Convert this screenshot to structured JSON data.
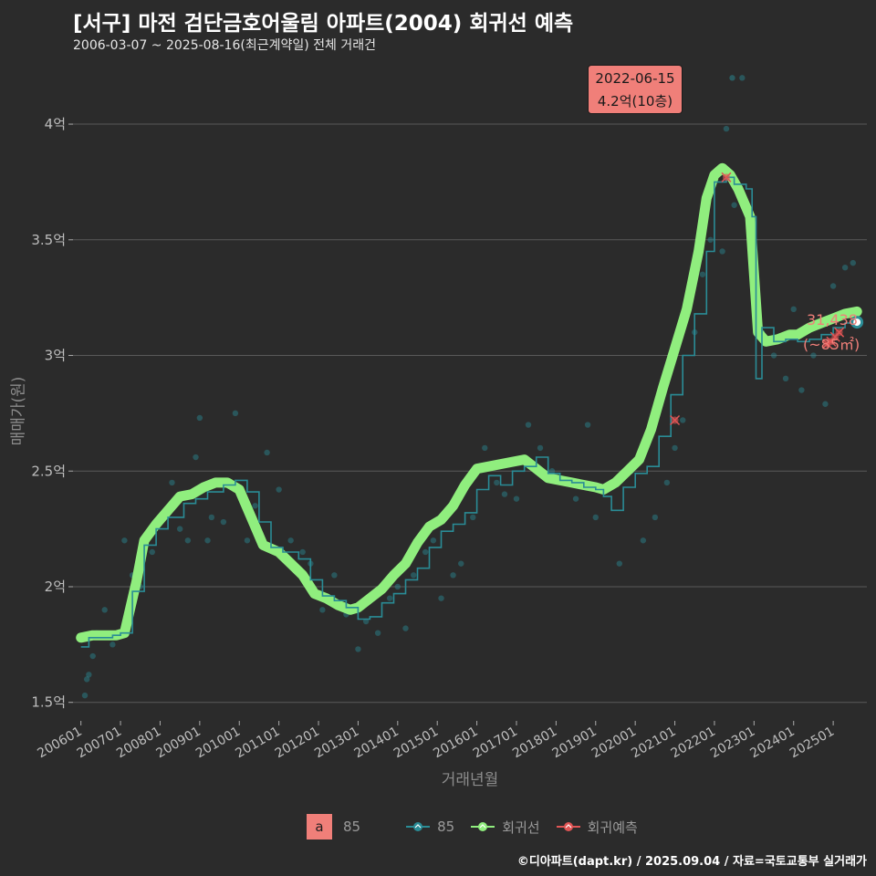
{
  "header": {
    "title": "[서구] 마전 검단금호어울림 아파트(2004) 회귀선 예측",
    "subtitle": "2006-03-07 ~ 2025-08-16(최근계약일) 전체 거래건"
  },
  "callout": {
    "date": "2022-06-15",
    "price": "4.2억(10층)"
  },
  "last_point": {
    "value": "31,438",
    "area": "(~85㎡)"
  },
  "legend": {
    "fill_key": "a",
    "fill_label": "85",
    "series1": "85",
    "series2": "회귀선",
    "series3": "회귀예측"
  },
  "footer": "©디아파트(dapt.kr) / 2025.09.04 / 자료=국토교통부 실거래가",
  "colors": {
    "background": "#2b2b2b",
    "regression": "#90ee7e",
    "actual": "#2a8c96",
    "predict": "#e05555",
    "accent": "#f07f79"
  },
  "chart_data": {
    "type": "line",
    "title": "[서구] 마전 검단금호어울림 아파트(2004) 회귀선 예측",
    "xlabel": "거래년월",
    "ylabel": "매매가(원)",
    "x_range": [
      2005.8,
      2025.85
    ],
    "ylim": [
      1.42,
      4.3
    ],
    "y_ticks": [
      1.5,
      2,
      2.5,
      3,
      3.5,
      4
    ],
    "y_tick_labels": [
      "1.5억",
      "2억",
      "2.5억",
      "3억",
      "3.5억",
      "4억"
    ],
    "x_ticks": [
      2006,
      2007,
      2008,
      2009,
      2010,
      2011,
      2012,
      2013,
      2014,
      2015,
      2016,
      2017,
      2018,
      2019,
      2020,
      2021,
      2022,
      2023,
      2024,
      2025
    ],
    "x_tick_labels": [
      "200601",
      "200701",
      "200801",
      "200901",
      "201001",
      "201101",
      "201201",
      "201301",
      "201401",
      "201501",
      "201601",
      "201701",
      "201801",
      "201901",
      "202001",
      "202101",
      "202201",
      "202301",
      "202401",
      "202501"
    ],
    "series": [
      {
        "name": "회귀선",
        "x": [
          2006.0,
          2006.3,
          2006.6,
          2006.9,
          2007.1,
          2007.4,
          2007.6,
          2007.9,
          2008.2,
          2008.5,
          2008.8,
          2009.1,
          2009.4,
          2009.7,
          2010.0,
          2010.3,
          2010.6,
          2011.0,
          2011.3,
          2011.6,
          2011.9,
          2012.2,
          2012.5,
          2012.8,
          2013.0,
          2013.3,
          2013.6,
          2013.9,
          2014.2,
          2014.5,
          2014.8,
          2015.1,
          2015.4,
          2015.7,
          2016.0,
          2016.3,
          2016.6,
          2016.9,
          2017.2,
          2017.5,
          2017.8,
          2018.1,
          2018.4,
          2018.7,
          2019.0,
          2019.2,
          2019.5,
          2019.8,
          2020.1,
          2020.4,
          2020.7,
          2021.0,
          2021.3,
          2021.6,
          2021.8,
          2022.0,
          2022.2,
          2022.4,
          2022.6,
          2022.9,
          2023.1,
          2023.3,
          2023.6,
          2023.9,
          2024.1,
          2024.4,
          2024.7,
          2025.0,
          2025.3,
          2025.6
        ],
        "values": [
          1.78,
          1.79,
          1.79,
          1.79,
          1.8,
          2.02,
          2.2,
          2.27,
          2.33,
          2.39,
          2.4,
          2.43,
          2.45,
          2.45,
          2.42,
          2.3,
          2.18,
          2.15,
          2.1,
          2.05,
          1.97,
          1.95,
          1.92,
          1.9,
          1.91,
          1.95,
          1.99,
          2.05,
          2.1,
          2.19,
          2.26,
          2.29,
          2.35,
          2.44,
          2.51,
          2.52,
          2.53,
          2.54,
          2.55,
          2.51,
          2.47,
          2.46,
          2.45,
          2.44,
          2.43,
          2.42,
          2.45,
          2.5,
          2.55,
          2.68,
          2.86,
          3.03,
          3.2,
          3.45,
          3.68,
          3.78,
          3.81,
          3.78,
          3.72,
          3.6,
          3.1,
          3.06,
          3.07,
          3.09,
          3.09,
          3.12,
          3.14,
          3.16,
          3.18,
          3.19
        ]
      },
      {
        "name": "85",
        "x": [
          2006.0,
          2006.2,
          2006.5,
          2006.8,
          2007.0,
          2007.3,
          2007.6,
          2007.9,
          2008.2,
          2008.6,
          2008.9,
          2009.2,
          2009.6,
          2009.9,
          2010.2,
          2010.5,
          2010.8,
          2011.1,
          2011.5,
          2011.8,
          2012.1,
          2012.4,
          2012.7,
          2013.0,
          2013.3,
          2013.6,
          2013.9,
          2014.2,
          2014.5,
          2014.8,
          2015.1,
          2015.4,
          2015.7,
          2016.0,
          2016.3,
          2016.6,
          2016.9,
          2017.2,
          2017.5,
          2017.8,
          2018.1,
          2018.4,
          2018.7,
          2019.0,
          2019.2,
          2019.4,
          2019.7,
          2020.0,
          2020.3,
          2020.6,
          2020.9,
          2021.2,
          2021.5,
          2021.8,
          2022.0,
          2022.3,
          2022.5,
          2022.8,
          2022.95,
          2023.05,
          2023.2,
          2023.5,
          2023.8,
          2024.1,
          2024.4,
          2024.7,
          2025.0,
          2025.3,
          2025.6
        ],
        "values": [
          1.74,
          1.78,
          1.78,
          1.79,
          1.8,
          1.98,
          2.18,
          2.25,
          2.3,
          2.36,
          2.38,
          2.41,
          2.44,
          2.46,
          2.41,
          2.28,
          2.17,
          2.15,
          2.12,
          2.03,
          1.96,
          1.94,
          1.91,
          1.86,
          1.87,
          1.93,
          1.97,
          2.03,
          2.08,
          2.17,
          2.24,
          2.27,
          2.32,
          2.42,
          2.48,
          2.44,
          2.5,
          2.52,
          2.56,
          2.49,
          2.46,
          2.45,
          2.43,
          2.42,
          2.39,
          2.33,
          2.43,
          2.49,
          2.52,
          2.65,
          2.83,
          3.0,
          3.18,
          3.45,
          3.75,
          3.77,
          3.74,
          3.72,
          3.6,
          2.9,
          3.12,
          3.06,
          3.07,
          3.06,
          3.07,
          3.09,
          3.12,
          3.14,
          3.15
        ]
      },
      {
        "name": "회귀예측",
        "x": [
          2021.0,
          2022.3,
          2024.85,
          2024.95,
          2025.05,
          2025.15
        ],
        "values": [
          2.72,
          3.77,
          3.05,
          3.06,
          3.08,
          3.1
        ]
      }
    ],
    "scatter": {
      "x": [
        2006.1,
        2006.15,
        2006.2,
        2006.3,
        2006.4,
        2006.6,
        2006.8,
        2007.1,
        2007.3,
        2007.5,
        2007.8,
        2008.0,
        2008.3,
        2008.5,
        2008.7,
        2008.9,
        2009.0,
        2009.2,
        2009.3,
        2009.6,
        2009.9,
        2010.2,
        2010.4,
        2010.7,
        2011.0,
        2011.3,
        2011.6,
        2011.8,
        2012.1,
        2012.4,
        2012.7,
        2013.0,
        2013.2,
        2013.5,
        2013.8,
        2014.0,
        2014.2,
        2014.4,
        2014.7,
        2014.9,
        2015.1,
        2015.4,
        2015.6,
        2015.9,
        2016.2,
        2016.5,
        2016.7,
        2017.0,
        2017.3,
        2017.6,
        2017.9,
        2018.2,
        2018.5,
        2018.8,
        2019.0,
        2019.3,
        2019.6,
        2019.9,
        2020.2,
        2020.5,
        2020.8,
        2021.0,
        2021.2,
        2021.5,
        2021.7,
        2021.9,
        2022.2,
        2022.3,
        2022.5,
        2022.7,
        2023.2,
        2023.5,
        2023.8,
        2024.0,
        2024.2,
        2024.5,
        2024.8,
        2025.0,
        2025.3,
        2025.5
      ],
      "values": [
        1.53,
        1.6,
        1.62,
        1.7,
        1.8,
        1.9,
        1.75,
        2.2,
        2.05,
        2.0,
        2.15,
        2.3,
        2.45,
        2.25,
        2.2,
        2.56,
        2.73,
        2.2,
        2.3,
        2.28,
        2.75,
        2.2,
        2.35,
        2.58,
        2.42,
        2.2,
        2.15,
        2.1,
        1.9,
        2.05,
        1.88,
        1.73,
        1.85,
        1.8,
        1.95,
        2.0,
        1.82,
        2.05,
        2.15,
        2.2,
        1.95,
        2.05,
        2.1,
        2.3,
        2.6,
        2.45,
        2.4,
        2.38,
        2.7,
        2.6,
        2.5,
        2.45,
        2.38,
        2.7,
        2.3,
        2.42,
        2.1,
        2.5,
        2.2,
        2.3,
        2.45,
        2.6,
        2.72,
        3.1,
        3.35,
        3.5,
        3.45,
        3.98,
        3.65,
        4.2,
        3.1,
        3.0,
        2.9,
        3.2,
        2.85,
        3.0,
        2.79,
        3.3,
        3.38,
        3.4
      ]
    },
    "last_marker": {
      "x": 2025.6,
      "y": 3.1438
    },
    "highlight": {
      "x": 2022.45,
      "y": 4.2
    }
  }
}
